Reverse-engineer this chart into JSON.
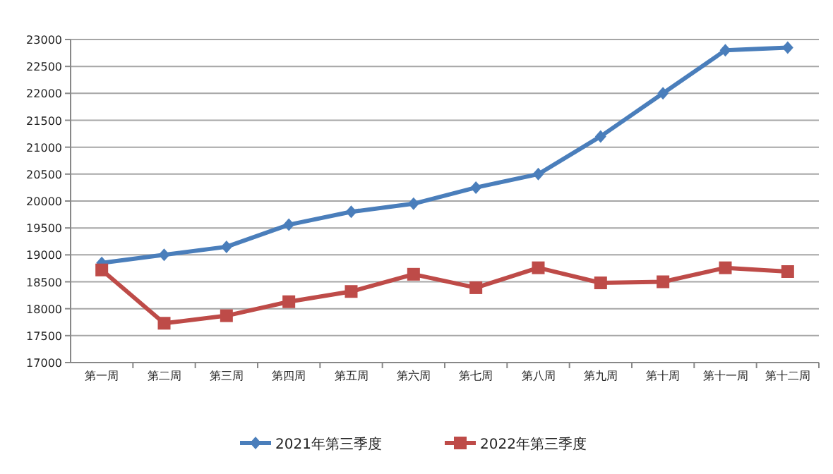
{
  "chart_data": {
    "type": "line",
    "categories": [
      "第一周",
      "第二周",
      "第三周",
      "第四周",
      "第五周",
      "第六周",
      "第七周",
      "第八周",
      "第九周",
      "第十周",
      "第十一周",
      "第十二周"
    ],
    "series": [
      {
        "name": "2021年第三季度",
        "color": "#4a7ebb",
        "marker": "diamond",
        "values": [
          18850,
          19000,
          19150,
          19560,
          19800,
          19950,
          20250,
          20500,
          21200,
          22000,
          22800,
          22850
        ]
      },
      {
        "name": "2022年第三季度",
        "color": "#be4b48",
        "marker": "square",
        "values": [
          18720,
          17730,
          17870,
          18130,
          18320,
          18640,
          18390,
          18760,
          18480,
          18500,
          18760,
          18690
        ]
      }
    ],
    "ylim": [
      17000,
      23000
    ],
    "yticks": [
      17000,
      17500,
      18000,
      18500,
      19000,
      19500,
      20000,
      20500,
      21000,
      21500,
      22000,
      22500,
      23000
    ],
    "grid": "y",
    "legend": "bottom",
    "line_style": "solid"
  }
}
